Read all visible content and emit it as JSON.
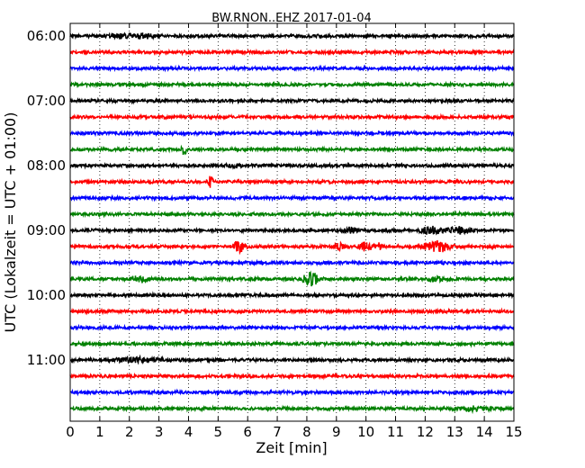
{
  "chart_data": {
    "type": "line",
    "title": "BW.RNON..EHZ 2017-01-04",
    "xlabel": "Zeit  [min]",
    "ylabel": "UTC (Lokalzeit = UTC + 01:00)",
    "xlim": [
      0,
      15
    ],
    "x_ticks": [
      "0",
      "1",
      "2",
      "3",
      "4",
      "5",
      "6",
      "7",
      "8",
      "9",
      "10",
      "11",
      "12",
      "13",
      "14",
      "15"
    ],
    "y_tick_labels": [
      "06:00",
      "07:00",
      "08:00",
      "09:00",
      "10:00",
      "11:00"
    ],
    "grid": "vertical dotted at each minute",
    "trace_interval_min": 15,
    "trace_colors": [
      "#000000",
      "#ff0000",
      "#0000ff",
      "#008000"
    ],
    "series": [
      {
        "start": "06:00",
        "events": [
          {
            "x": 1.8,
            "amp": 0.18,
            "width": 0.9
          },
          {
            "x": 2.6,
            "amp": 0.15,
            "width": 0.5
          }
        ]
      },
      {
        "start": "06:15",
        "events": []
      },
      {
        "start": "06:30",
        "events": []
      },
      {
        "start": "06:45",
        "events": []
      },
      {
        "start": "07:00",
        "events": []
      },
      {
        "start": "07:15",
        "events": []
      },
      {
        "start": "07:30",
        "events": []
      },
      {
        "start": "07:45",
        "events": [
          {
            "x": 3.85,
            "amp": 0.7,
            "width": 0.1
          }
        ]
      },
      {
        "start": "08:00",
        "events": [
          {
            "x": 5.5,
            "amp": 0.22,
            "width": 0.3
          }
        ]
      },
      {
        "start": "08:15",
        "events": [
          {
            "x": 4.75,
            "amp": 0.6,
            "width": 0.1
          }
        ]
      },
      {
        "start": "08:30",
        "events": []
      },
      {
        "start": "08:45",
        "events": []
      },
      {
        "start": "09:00",
        "events": [
          {
            "x": 9.5,
            "amp": 0.3,
            "width": 0.3
          },
          {
            "x": 12.2,
            "amp": 0.35,
            "width": 0.5
          },
          {
            "x": 13.1,
            "amp": 0.3,
            "width": 0.5
          }
        ]
      },
      {
        "start": "09:15",
        "events": [
          {
            "x": 5.7,
            "amp": 0.6,
            "width": 0.25
          },
          {
            "x": 9.1,
            "amp": 0.4,
            "width": 0.2
          },
          {
            "x": 10.0,
            "amp": 0.45,
            "width": 0.3
          },
          {
            "x": 10.45,
            "amp": 0.4,
            "width": 0.15
          },
          {
            "x": 12.4,
            "amp": 0.55,
            "width": 0.6
          }
        ]
      },
      {
        "start": "09:30",
        "events": []
      },
      {
        "start": "09:45",
        "events": [
          {
            "x": 2.3,
            "amp": 0.25,
            "width": 0.5
          },
          {
            "x": 8.15,
            "amp": 0.75,
            "width": 0.35
          },
          {
            "x": 12.3,
            "amp": 0.2,
            "width": 0.4
          }
        ]
      },
      {
        "start": "10:00",
        "events": []
      },
      {
        "start": "10:15",
        "events": []
      },
      {
        "start": "10:30",
        "events": []
      },
      {
        "start": "10:45",
        "events": []
      },
      {
        "start": "11:00",
        "events": [
          {
            "x": 2.2,
            "amp": 0.2,
            "width": 1.2
          }
        ]
      },
      {
        "start": "11:15",
        "events": []
      },
      {
        "start": "11:30",
        "events": []
      },
      {
        "start": "11:45",
        "events": [
          {
            "x": 13.7,
            "amp": 0.2,
            "width": 0.8
          }
        ]
      }
    ]
  }
}
